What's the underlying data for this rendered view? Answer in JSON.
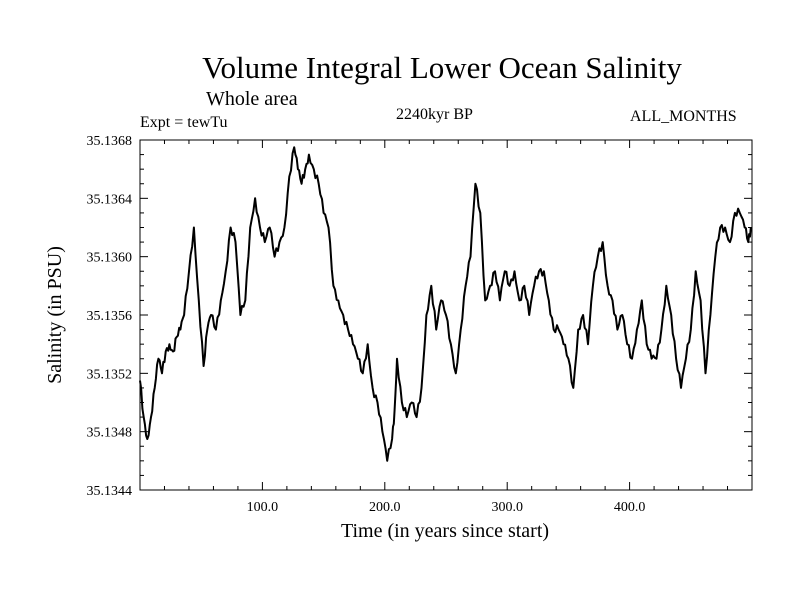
{
  "header": {
    "title": "Volume Integral Lower Ocean Salinity",
    "subtitle": "Whole area",
    "expt_label": "Expt = tewTu",
    "period_label": "2240kyr BP",
    "months_label": "ALL_MONTHS"
  },
  "chart_data": {
    "type": "line",
    "title": "Volume Integral Lower Ocean Salinity",
    "xlabel": "Time (in years since start)",
    "ylabel": "Salinity (in PSU)",
    "xlim": [
      0,
      500
    ],
    "ylim": [
      35.1344,
      35.1368
    ],
    "xticks": [
      100,
      200,
      300,
      400
    ],
    "xtick_labels": [
      "100.0",
      "200.0",
      "300.0",
      "400.0"
    ],
    "yticks": [
      35.1344,
      35.1348,
      35.1352,
      35.1356,
      35.136,
      35.1364,
      35.1368
    ],
    "ytick_labels": [
      "35.1344",
      "35.1348",
      "35.1352",
      "35.1356",
      "35.1360",
      "35.1364",
      "35.1368"
    ],
    "grid": false,
    "series": [
      {
        "name": "Salinity",
        "color": "#000000",
        "x": [
          0,
          3,
          6,
          9,
          12,
          15,
          18,
          21,
          24,
          27,
          30,
          33,
          36,
          40,
          44,
          48,
          52,
          55,
          58,
          62,
          66,
          70,
          74,
          78,
          82,
          86,
          90,
          94,
          98,
          102,
          106,
          110,
          114,
          118,
          122,
          126,
          129,
          132,
          135,
          138,
          142,
          146,
          150,
          154,
          158,
          162,
          166,
          170,
          174,
          178,
          182,
          186,
          190,
          194,
          198,
          202,
          206,
          208,
          210,
          214,
          218,
          222,
          226,
          230,
          234,
          238,
          242,
          246,
          250,
          254,
          258,
          262,
          266,
          270,
          274,
          278,
          282,
          286,
          290,
          294,
          298,
          302,
          306,
          310,
          314,
          318,
          322,
          326,
          330,
          334,
          338,
          342,
          346,
          350,
          354,
          358,
          362,
          366,
          370,
          374,
          378,
          382,
          386,
          390,
          394,
          398,
          402,
          406,
          410,
          414,
          418,
          422,
          426,
          430,
          434,
          438,
          442,
          446,
          450,
          454,
          458,
          462,
          466,
          470,
          474,
          478,
          482,
          486,
          490,
          494,
          497,
          499
        ],
        "y": [
          35.13515,
          35.1349,
          35.13475,
          35.1349,
          35.1351,
          35.1353,
          35.1352,
          35.13535,
          35.1354,
          35.13535,
          35.13545,
          35.1355,
          35.1356,
          35.1359,
          35.1362,
          35.1357,
          35.13525,
          35.1355,
          35.1356,
          35.1355,
          35.1357,
          35.1359,
          35.1362,
          35.1361,
          35.1356,
          35.1357,
          35.1362,
          35.1364,
          35.1362,
          35.1361,
          35.1362,
          35.136,
          35.1361,
          35.1362,
          35.13655,
          35.13675,
          35.1366,
          35.1365,
          35.1366,
          35.1367,
          35.1366,
          35.1365,
          35.1363,
          35.1362,
          35.1358,
          35.1357,
          35.1356,
          35.1355,
          35.1354,
          35.1353,
          35.1352,
          35.1354,
          35.1351,
          35.135,
          35.1348,
          35.1346,
          35.13475,
          35.13495,
          35.1353,
          35.135,
          35.1349,
          35.135,
          35.1349,
          35.1351,
          35.1356,
          35.1358,
          35.1355,
          35.1357,
          35.1356,
          35.1354,
          35.1352,
          35.1355,
          35.1358,
          35.136,
          35.1365,
          35.1363,
          35.1357,
          35.1358,
          35.1359,
          35.1357,
          35.1359,
          35.1358,
          35.1359,
          35.1357,
          35.1358,
          35.1356,
          35.1358,
          35.1359,
          35.1359,
          35.1357,
          35.1355,
          35.1355,
          35.1354,
          35.1353,
          35.1351,
          35.1355,
          35.1356,
          35.1354,
          35.1358,
          35.136,
          35.1361,
          35.1358,
          35.1357,
          35.1355,
          35.1356,
          35.1354,
          35.1353,
          35.1355,
          35.1357,
          35.1354,
          35.1353,
          35.1353,
          35.1355,
          35.1358,
          35.1356,
          35.1353,
          35.1351,
          35.1353,
          35.1355,
          35.1359,
          35.1357,
          35.1352,
          35.1356,
          35.136,
          35.1362,
          35.1362,
          35.1361,
          35.1363,
          35.1363,
          35.1362,
          35.1361,
          35.1362
        ]
      }
    ]
  }
}
